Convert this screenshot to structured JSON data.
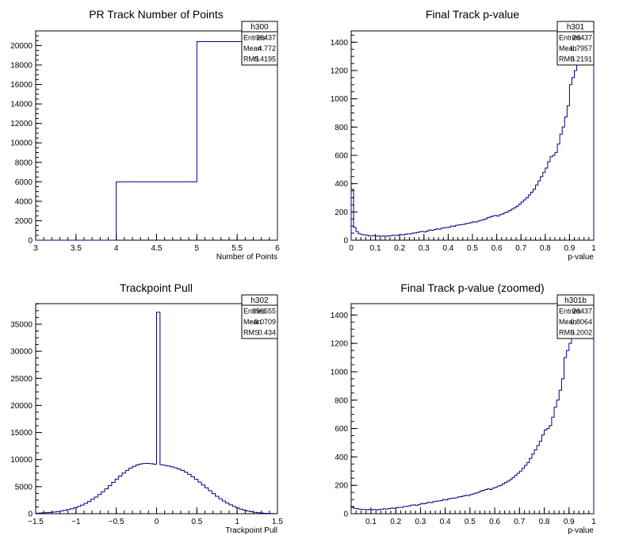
{
  "chart_data": [
    {
      "type": "bar",
      "title": "PR Track Number of Points",
      "xlabel": "Number of Points",
      "ylabel": "",
      "xlim": [
        3,
        6
      ],
      "ylim": [
        0,
        21500
      ],
      "xticks": [
        3,
        3.5,
        4,
        4.5,
        5,
        5.5,
        6
      ],
      "xtick_labels": [
        "3",
        "3.5",
        "4",
        "4.5",
        "5",
        "5.5",
        "6"
      ],
      "yticks": [
        0,
        2000,
        4000,
        6000,
        8000,
        10000,
        12000,
        14000,
        16000,
        18000,
        20000
      ],
      "ytick_labels": [
        "0",
        "2000",
        "4000",
        "6000",
        "8000",
        "10000",
        "12000",
        "14000",
        "16000",
        "18000",
        "20000"
      ],
      "bin_edges": [
        3,
        4,
        5,
        6
      ],
      "values": [
        0,
        6000,
        20400
      ],
      "stats": {
        "name": "h300",
        "entries": "26437",
        "mean": "4.772",
        "rms": "0.4195"
      }
    },
    {
      "type": "bar",
      "title": "Final Track p-value",
      "xlabel": "p-value",
      "ylabel": "",
      "xlim": [
        0,
        1
      ],
      "ylim": [
        0,
        1480
      ],
      "xticks": [
        0,
        0.1,
        0.2,
        0.3,
        0.4,
        0.5,
        0.6,
        0.7,
        0.8,
        0.9,
        1
      ],
      "xtick_labels": [
        "0",
        "0.1",
        "0.2",
        "0.3",
        "0.4",
        "0.5",
        "0.6",
        "0.7",
        "0.8",
        "0.9",
        "1"
      ],
      "yticks": [
        0,
        200,
        400,
        600,
        800,
        1000,
        1200,
        1400
      ],
      "ytick_labels": [
        "0",
        "200",
        "400",
        "600",
        "800",
        "1000",
        "1200",
        "1400"
      ],
      "bin_range": [
        0,
        1
      ],
      "values": [
        360,
        90,
        60,
        45,
        40,
        38,
        35,
        30,
        30,
        32,
        28,
        30,
        28,
        30,
        27,
        30,
        32,
        35,
        33,
        36,
        40,
        38,
        42,
        45,
        45,
        50,
        52,
        55,
        60,
        62,
        58,
        65,
        72,
        70,
        75,
        80,
        78,
        85,
        88,
        90,
        92,
        100,
        98,
        105,
        108,
        110,
        112,
        118,
        120,
        125,
        130,
        128,
        135,
        140,
        145,
        150,
        160,
        165,
        170,
        175,
        170,
        180,
        185,
        195,
        200,
        210,
        220,
        230,
        240,
        255,
        270,
        285,
        300,
        320,
        340,
        360,
        390,
        420,
        450,
        480,
        510,
        555,
        590,
        600,
        620,
        680,
        750,
        800,
        870,
        950,
        1100,
        1150,
        1200,
        1260,
        1300,
        1390,
        1400,
        1420,
        1430,
        1450
      ],
      "stats": {
        "name": "h301",
        "entries": "26437",
        "mean": "0.7957",
        "rms": "0.2191"
      }
    },
    {
      "type": "bar",
      "title": "Trackpoint Pull",
      "xlabel": "Trackpoint Pull",
      "ylabel": "",
      "xlim": [
        -1.5,
        1.5
      ],
      "ylim": [
        0,
        38800
      ],
      "xticks": [
        -1.5,
        -1,
        -0.5,
        0,
        0.5,
        1,
        1.5
      ],
      "xtick_labels": [
        "−1.5",
        "−1",
        "−0.5",
        "0",
        "0.5",
        "1",
        "1.5"
      ],
      "yticks": [
        0,
        5000,
        10000,
        15000,
        20000,
        25000,
        30000,
        35000
      ],
      "ytick_labels": [
        "0",
        "5000",
        "10000",
        "15000",
        "20000",
        "25000",
        "30000",
        "35000"
      ],
      "bin_range": [
        -1.5,
        1.5
      ],
      "values": [
        100,
        120,
        160,
        200,
        260,
        320,
        400,
        500,
        620,
        760,
        920,
        1100,
        1330,
        1600,
        1900,
        2250,
        2650,
        3080,
        3550,
        4060,
        4600,
        5180,
        5780,
        6380,
        6960,
        7500,
        8000,
        8420,
        8750,
        9000,
        9180,
        9270,
        9290,
        9250,
        9160,
        37200,
        9050,
        8940,
        8810,
        8660,
        8480,
        8260,
        7990,
        7660,
        7270,
        6830,
        6350,
        5840,
        5310,
        4770,
        4240,
        3720,
        3230,
        2770,
        2350,
        1970,
        1630,
        1330,
        1070,
        850,
        660,
        500,
        370,
        260,
        180,
        120,
        80,
        50,
        30,
        20
      ],
      "stats": {
        "name": "h302",
        "entries": "396555",
        "mean": "−0.0709",
        "rms": "0.434"
      }
    },
    {
      "type": "bar",
      "title": "Final Track p-value (zoomed)",
      "xlabel": "p-value",
      "ylabel": "",
      "xlim": [
        0.02,
        1
      ],
      "ylim": [
        0,
        1480
      ],
      "xticks": [
        0.1,
        0.2,
        0.3,
        0.4,
        0.5,
        0.6,
        0.7,
        0.8,
        0.9,
        1
      ],
      "xtick_labels": [
        "0.1",
        "0.2",
        "0.3",
        "0.4",
        "0.5",
        "0.6",
        "0.7",
        "0.8",
        "0.9",
        "1"
      ],
      "yticks": [
        0,
        200,
        400,
        600,
        800,
        1000,
        1200,
        1400
      ],
      "ytick_labels": [
        "0",
        "200",
        "400",
        "600",
        "800",
        "1000",
        "1200",
        "1400"
      ],
      "bin_range": [
        0.02,
        1
      ],
      "values": [
        45,
        38,
        35,
        32,
        30,
        30,
        28,
        30,
        28,
        30,
        27,
        30,
        32,
        35,
        33,
        36,
        40,
        38,
        42,
        45,
        45,
        50,
        52,
        55,
        60,
        62,
        58,
        65,
        72,
        70,
        75,
        80,
        78,
        85,
        88,
        90,
        92,
        100,
        98,
        105,
        108,
        110,
        112,
        118,
        120,
        125,
        130,
        128,
        135,
        140,
        145,
        150,
        160,
        165,
        170,
        175,
        170,
        180,
        185,
        195,
        200,
        210,
        220,
        230,
        240,
        255,
        270,
        285,
        300,
        320,
        340,
        360,
        390,
        420,
        450,
        480,
        510,
        555,
        590,
        600,
        620,
        680,
        750,
        800,
        870,
        950,
        1100,
        1150,
        1200,
        1260,
        1300,
        1390,
        1400,
        1420,
        1430,
        1450,
        1460,
        1465
      ],
      "stats": {
        "name": "h301b",
        "entries": "26437",
        "mean": "0.8064",
        "rms": "0.2002"
      }
    }
  ],
  "stats_labels": {
    "entries": "Entries",
    "mean": "Mean",
    "rms": "RMS"
  },
  "colors": {
    "line": "#00008b",
    "axis": "#000000",
    "background": "#ffffff"
  }
}
